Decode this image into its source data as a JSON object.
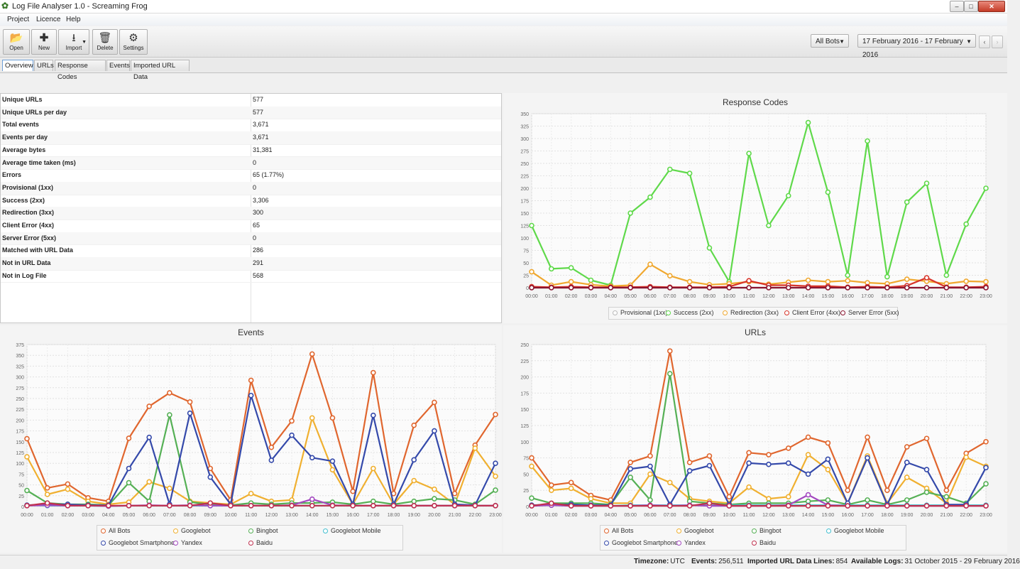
{
  "window": {
    "title": "Log File Analyser 1.0 - Screaming Frog"
  },
  "menu": [
    "Project",
    "Licence",
    "Help"
  ],
  "toolbar": {
    "buttons": [
      "Open",
      "New",
      "Import",
      "Delete",
      "Settings"
    ]
  },
  "filters": {
    "bots": "All Bots",
    "date_range": "17 February 2016 - 17 February 2016"
  },
  "tabs": [
    "Overview",
    "URLs",
    "Response Codes",
    "Events",
    "Imported URL Data"
  ],
  "stats": [
    {
      "label": "Unique URLs",
      "value": "577"
    },
    {
      "label": "Unique URLs per day",
      "value": "577"
    },
    {
      "label": "Total events",
      "value": "3,671"
    },
    {
      "label": "Events per day",
      "value": "3,671"
    },
    {
      "label": "Average bytes",
      "value": "31,381"
    },
    {
      "label": "Average time taken (ms)",
      "value": "0"
    },
    {
      "label": "Errors",
      "value": "65 (1.77%)"
    },
    {
      "label": "Provisional (1xx)",
      "value": "0"
    },
    {
      "label": "Success (2xx)",
      "value": "3,306"
    },
    {
      "label": "Redirection (3xx)",
      "value": "300"
    },
    {
      "label": "Client Error (4xx)",
      "value": "65"
    },
    {
      "label": "Server Error (5xx)",
      "value": "0"
    },
    {
      "label": "Matched with URL Data",
      "value": "286"
    },
    {
      "label": "Not in URL Data",
      "value": "291"
    },
    {
      "label": "Not in Log File",
      "value": "568"
    }
  ],
  "chart_data": [
    {
      "type": "line",
      "title": "Response Codes",
      "x": [
        "00:00",
        "01:00",
        "02:00",
        "03:00",
        "04:00",
        "05:00",
        "06:00",
        "07:00",
        "08:00",
        "09:00",
        "10:00",
        "11:00",
        "12:00",
        "13:00",
        "14:00",
        "15:00",
        "16:00",
        "17:00",
        "18:00",
        "19:00",
        "20:00",
        "21:00",
        "22:00",
        "23:00"
      ],
      "ylim": [
        0,
        350
      ],
      "yticks": [
        0,
        25,
        50,
        75,
        100,
        125,
        150,
        175,
        200,
        225,
        250,
        275,
        300,
        325,
        350
      ],
      "grid": true,
      "legend_position": "bottom",
      "series": [
        {
          "name": "Provisional (1xx)",
          "color": "#b8b8b8",
          "values": [
            0,
            0,
            0,
            0,
            0,
            0,
            0,
            0,
            0,
            0,
            0,
            0,
            0,
            0,
            0,
            0,
            0,
            0,
            0,
            0,
            0,
            0,
            0,
            0
          ]
        },
        {
          "name": "Success (2xx)",
          "color": "#5fd94a",
          "values": [
            125,
            38,
            40,
            15,
            5,
            150,
            182,
            238,
            230,
            80,
            12,
            270,
            125,
            185,
            332,
            192,
            25,
            295,
            22,
            172,
            210,
            25,
            128,
            200
          ]
        },
        {
          "name": "Redirection (3xx)",
          "color": "#f0a830",
          "values": [
            32,
            5,
            12,
            6,
            3,
            5,
            47,
            24,
            12,
            6,
            8,
            12,
            7,
            11,
            15,
            12,
            14,
            10,
            8,
            17,
            13,
            8,
            13,
            12
          ]
        },
        {
          "name": "Client Error (4xx)",
          "color": "#d8352a",
          "values": [
            2,
            1,
            2,
            1,
            1,
            1,
            2,
            1,
            1,
            1,
            2,
            14,
            5,
            5,
            3,
            3,
            1,
            2,
            1,
            4,
            20,
            1,
            1,
            2
          ]
        },
        {
          "name": "Server Error (5xx)",
          "color": "#8b1530",
          "values": [
            0,
            0,
            0,
            0,
            0,
            0,
            0,
            0,
            0,
            0,
            0,
            0,
            0,
            0,
            0,
            0,
            0,
            0,
            0,
            0,
            0,
            0,
            0,
            0
          ]
        }
      ]
    },
    {
      "type": "line",
      "title": "Events",
      "x": [
        "00:00",
        "01:00",
        "02:00",
        "03:00",
        "04:00",
        "05:00",
        "06:00",
        "07:00",
        "08:00",
        "09:00",
        "10:00",
        "11:00",
        "12:00",
        "13:00",
        "14:00",
        "15:00",
        "16:00",
        "17:00",
        "18:00",
        "19:00",
        "20:00",
        "21:00",
        "22:00",
        "23:00"
      ],
      "ylim": [
        0,
        375
      ],
      "yticks": [
        0,
        25,
        50,
        75,
        100,
        125,
        150,
        175,
        200,
        225,
        250,
        275,
        300,
        325,
        350,
        375
      ],
      "grid": true,
      "legend_position": "bottom",
      "series": [
        {
          "name": "All Bots",
          "color": "#e0662e",
          "values": [
            157,
            43,
            52,
            20,
            12,
            158,
            232,
            263,
            242,
            88,
            15,
            292,
            137,
            198,
            353,
            205,
            35,
            310,
            30,
            188,
            241,
            30,
            142,
            213
          ]
        },
        {
          "name": "Googlebot",
          "color": "#f0b030",
          "values": [
            115,
            28,
            40,
            12,
            5,
            10,
            57,
            42,
            12,
            8,
            5,
            30,
            12,
            15,
            205,
            85,
            5,
            88,
            5,
            60,
            40,
            5,
            135,
            70
          ]
        },
        {
          "name": "Bingbot",
          "color": "#55b055",
          "values": [
            37,
            8,
            5,
            5,
            3,
            55,
            12,
            212,
            10,
            5,
            3,
            8,
            5,
            8,
            8,
            10,
            5,
            12,
            5,
            12,
            18,
            15,
            5,
            38
          ]
        },
        {
          "name": "Googlebot Mobile",
          "color": "#44bfd0",
          "values": [
            3,
            2,
            2,
            2,
            1,
            2,
            2,
            2,
            2,
            2,
            2,
            2,
            2,
            2,
            2,
            2,
            2,
            2,
            2,
            2,
            2,
            2,
            2,
            2
          ]
        },
        {
          "name": "Googlebot Smartphone",
          "color": "#3449aa",
          "values": [
            3,
            5,
            5,
            3,
            3,
            88,
            160,
            5,
            216,
            68,
            5,
            257,
            107,
            165,
            113,
            105,
            5,
            211,
            5,
            108,
            175,
            5,
            3,
            100
          ]
        },
        {
          "name": "Yandex",
          "color": "#a348c0",
          "values": [
            2,
            3,
            2,
            2,
            1,
            2,
            3,
            2,
            3,
            2,
            2,
            2,
            2,
            3,
            17,
            3,
            2,
            2,
            2,
            2,
            2,
            2,
            2,
            2
          ]
        },
        {
          "name": "Baidu",
          "color": "#c0304e",
          "values": [
            2,
            8,
            2,
            2,
            2,
            2,
            2,
            2,
            2,
            8,
            2,
            2,
            2,
            2,
            2,
            2,
            2,
            2,
            2,
            2,
            2,
            2,
            2,
            2
          ]
        }
      ]
    },
    {
      "type": "line",
      "title": "URLs",
      "x": [
        "00:00",
        "01:00",
        "02:00",
        "03:00",
        "04:00",
        "05:00",
        "06:00",
        "07:00",
        "08:00",
        "09:00",
        "10:00",
        "11:00",
        "12:00",
        "13:00",
        "14:00",
        "15:00",
        "16:00",
        "17:00",
        "18:00",
        "19:00",
        "20:00",
        "21:00",
        "22:00",
        "23:00"
      ],
      "ylim": [
        0,
        250
      ],
      "yticks": [
        0,
        25,
        50,
        75,
        100,
        125,
        150,
        175,
        200,
        225,
        250
      ],
      "grid": true,
      "legend_position": "bottom",
      "series": [
        {
          "name": "All Bots",
          "color": "#e0662e",
          "values": [
            75,
            33,
            37,
            17,
            10,
            68,
            78,
            240,
            68,
            78,
            15,
            83,
            80,
            90,
            107,
            98,
            25,
            107,
            25,
            92,
            105,
            25,
            82,
            100
          ]
        },
        {
          "name": "Googlebot",
          "color": "#f0b030",
          "values": [
            62,
            25,
            28,
            12,
            5,
            5,
            50,
            37,
            12,
            8,
            5,
            30,
            12,
            15,
            80,
            57,
            5,
            78,
            5,
            45,
            28,
            5,
            76,
            62
          ]
        },
        {
          "name": "Bingbot",
          "color": "#55b055",
          "values": [
            13,
            5,
            5,
            5,
            3,
            45,
            10,
            205,
            8,
            5,
            3,
            5,
            5,
            5,
            8,
            10,
            3,
            10,
            3,
            10,
            22,
            15,
            5,
            35
          ]
        },
        {
          "name": "Googlebot Mobile",
          "color": "#44bfd0",
          "values": [
            2,
            2,
            2,
            2,
            1,
            2,
            2,
            2,
            2,
            2,
            2,
            2,
            2,
            2,
            2,
            2,
            2,
            2,
            2,
            2,
            2,
            2,
            2,
            2
          ]
        },
        {
          "name": "Googlebot Smartphone",
          "color": "#3449aa",
          "values": [
            2,
            3,
            3,
            2,
            2,
            58,
            62,
            3,
            55,
            63,
            3,
            67,
            65,
            67,
            50,
            73,
            5,
            75,
            3,
            68,
            57,
            3,
            3,
            60
          ]
        },
        {
          "name": "Yandex",
          "color": "#a348c0",
          "values": [
            1,
            2,
            1,
            1,
            1,
            1,
            2,
            1,
            2,
            1,
            1,
            1,
            1,
            2,
            18,
            2,
            1,
            1,
            1,
            1,
            1,
            1,
            1,
            1
          ]
        },
        {
          "name": "Baidu",
          "color": "#c0304e",
          "values": [
            1,
            5,
            1,
            1,
            1,
            1,
            1,
            1,
            1,
            5,
            1,
            1,
            1,
            1,
            1,
            1,
            1,
            1,
            1,
            1,
            1,
            1,
            1,
            1
          ]
        }
      ]
    }
  ],
  "statusbar": {
    "timezone_label": "Timezone:",
    "timezone": "UTC",
    "events_label": "Events:",
    "events": "256,511",
    "imported_label": "Imported URL Data Lines:",
    "imported": "854",
    "logs_label": "Available Logs:",
    "logs": "31 October 2015 - 29 February 2016"
  }
}
